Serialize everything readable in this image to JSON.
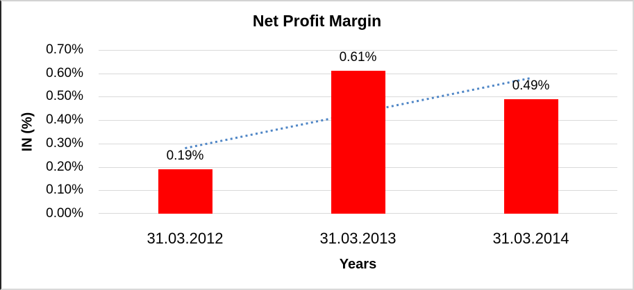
{
  "chart_data": {
    "type": "bar",
    "title": "Net Profit Margin",
    "xlabel": "Years",
    "ylabel": "IN (%)",
    "categories": [
      "31.03.2012",
      "31.03.2013",
      "31.03.2014"
    ],
    "values": [
      0.19,
      0.61,
      0.49
    ],
    "data_labels": [
      "0.19%",
      "0.61%",
      "0.49%"
    ],
    "y_ticks": [
      "0.70%",
      "0.60%",
      "0.50%",
      "0.40%",
      "0.30%",
      "0.20%",
      "0.10%",
      "0.00%"
    ],
    "ylim": [
      0,
      0.7
    ],
    "grid": true,
    "legend": "none",
    "bar_color": "#ff0000",
    "gridline_color": "#d9d9d9",
    "trendline": {
      "type": "linear",
      "style": "dotted",
      "color": "#4f86c6",
      "start_value": 0.28,
      "end_value": 0.58
    }
  }
}
